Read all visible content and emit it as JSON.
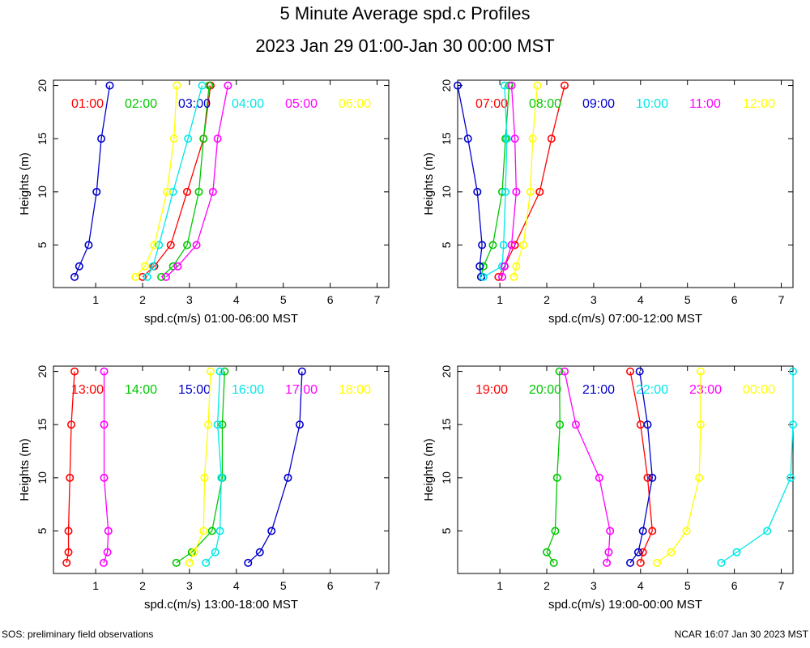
{
  "title": "5 Minute Average spd.c Profiles",
  "subtitle": "2023 Jan 29 01:00-Jan 30 00:00 MST",
  "footer_left": "SOS: preliminary field observations",
  "footer_right": "NCAR 16:07 Jan 30 2023 MST",
  "chart_data": [
    {
      "type": "line",
      "xlabel": "spd.c(m/s) 01:00-06:00 MST",
      "ylabel": "Heights (m)",
      "xlim": [
        0.1,
        7.25
      ],
      "ylim": [
        1,
        20.5
      ],
      "xticks": [
        1,
        2,
        3,
        4,
        5,
        6,
        7
      ],
      "yticks": [
        5,
        10,
        15,
        20
      ],
      "heights": [
        2,
        3,
        5,
        10,
        15,
        20
      ],
      "series": [
        {
          "name": "01:00",
          "color": "#ff0000",
          "values": [
            2.0,
            2.25,
            2.6,
            2.95,
            3.3,
            3.45
          ]
        },
        {
          "name": "02:00",
          "color": "#00c800",
          "values": [
            2.4,
            2.65,
            2.95,
            3.2,
            3.3,
            3.42
          ]
        },
        {
          "name": "03:00",
          "color": "#0000cc",
          "values": [
            0.55,
            0.65,
            0.85,
            1.02,
            1.12,
            1.3
          ]
        },
        {
          "name": "04:00",
          "color": "#00e8e8",
          "values": [
            2.1,
            2.22,
            2.35,
            2.65,
            2.97,
            3.27
          ]
        },
        {
          "name": "05:00",
          "color": "#ff00ff",
          "values": [
            2.5,
            2.75,
            3.15,
            3.5,
            3.6,
            3.82
          ]
        },
        {
          "name": "06:00",
          "color": "#ffff00",
          "values": [
            1.85,
            2.05,
            2.25,
            2.52,
            2.67,
            2.73
          ]
        }
      ]
    },
    {
      "type": "line",
      "xlabel": "spd.c(m/s) 07:00-12:00 MST",
      "ylabel": "Heights (m)",
      "xlim": [
        0.1,
        7.25
      ],
      "ylim": [
        1,
        20.5
      ],
      "xticks": [
        1,
        2,
        3,
        4,
        5,
        6,
        7
      ],
      "yticks": [
        5,
        10,
        15,
        20
      ],
      "heights": [
        2,
        3,
        5,
        10,
        15,
        20
      ],
      "series": [
        {
          "name": "07:00",
          "color": "#ff0000",
          "values": [
            0.97,
            1.1,
            1.32,
            1.85,
            2.1,
            2.38
          ]
        },
        {
          "name": "08:00",
          "color": "#00c800",
          "values": [
            0.6,
            0.65,
            0.85,
            1.05,
            1.12,
            1.2
          ]
        },
        {
          "name": "09:00",
          "color": "#0000cc",
          "values": [
            0.6,
            0.57,
            0.62,
            0.52,
            0.32,
            0.1
          ]
        },
        {
          "name": "10:00",
          "color": "#00e8e8",
          "values": [
            0.65,
            1.05,
            1.08,
            1.12,
            1.15,
            1.1
          ]
        },
        {
          "name": "11:00",
          "color": "#ff00ff",
          "values": [
            1.05,
            1.1,
            1.25,
            1.35,
            1.32,
            1.25
          ]
        },
        {
          "name": "12:00",
          "color": "#ffff00",
          "values": [
            1.3,
            1.35,
            1.5,
            1.65,
            1.7,
            1.8
          ]
        }
      ]
    },
    {
      "type": "line",
      "xlabel": "spd.c(m/s) 13:00-18:00 MST",
      "ylabel": "Heights (m)",
      "xlim": [
        0.1,
        7.25
      ],
      "ylim": [
        1,
        20.5
      ],
      "xticks": [
        1,
        2,
        3,
        4,
        5,
        6,
        7
      ],
      "yticks": [
        5,
        10,
        15,
        20
      ],
      "heights": [
        2,
        3,
        5,
        10,
        15,
        20
      ],
      "series": [
        {
          "name": "13:00",
          "color": "#ff0000",
          "values": [
            0.38,
            0.42,
            0.42,
            0.45,
            0.48,
            0.55
          ]
        },
        {
          "name": "14:00",
          "color": "#00c800",
          "values": [
            2.72,
            3.05,
            3.48,
            3.7,
            3.7,
            3.75
          ]
        },
        {
          "name": "15:00",
          "color": "#0000cc",
          "values": [
            4.25,
            4.5,
            4.75,
            5.1,
            5.35,
            5.4
          ]
        },
        {
          "name": "16:00",
          "color": "#00e8e8",
          "values": [
            3.35,
            3.55,
            3.65,
            3.68,
            3.6,
            3.65
          ]
        },
        {
          "name": "17:00",
          "color": "#ff00ff",
          "values": [
            1.17,
            1.25,
            1.27,
            1.18,
            1.18,
            1.18
          ]
        },
        {
          "name": "18:00",
          "color": "#ffff00",
          "values": [
            3.0,
            3.1,
            3.3,
            3.32,
            3.4,
            3.45
          ]
        }
      ]
    },
    {
      "type": "line",
      "xlabel": "spd.c(m/s) 19:00-00:00 MST",
      "ylabel": "Heights (m)",
      "xlim": [
        0.1,
        7.25
      ],
      "ylim": [
        1,
        20.5
      ],
      "xticks": [
        1,
        2,
        3,
        4,
        5,
        6,
        7
      ],
      "yticks": [
        5,
        10,
        15,
        20
      ],
      "heights": [
        2,
        3,
        5,
        10,
        15,
        20
      ],
      "series": [
        {
          "name": "19:00",
          "color": "#ff0000",
          "values": [
            4.0,
            4.05,
            4.25,
            4.15,
            4.0,
            3.78
          ]
        },
        {
          "name": "20:00",
          "color": "#00c800",
          "values": [
            2.15,
            2.0,
            2.18,
            2.22,
            2.28,
            2.27
          ]
        },
        {
          "name": "21:00",
          "color": "#0000cc",
          "values": [
            3.78,
            3.95,
            4.05,
            4.25,
            4.15,
            3.98
          ]
        },
        {
          "name": "22:00",
          "color": "#00e8e8",
          "values": [
            5.72,
            6.05,
            6.7,
            7.2,
            7.25,
            7.25
          ]
        },
        {
          "name": "23:00",
          "color": "#ff00ff",
          "values": [
            3.28,
            3.32,
            3.35,
            3.12,
            2.62,
            2.38
          ]
        },
        {
          "name": "00:00",
          "color": "#ffff00",
          "values": [
            4.35,
            4.65,
            4.98,
            5.25,
            5.28,
            5.28
          ]
        }
      ]
    }
  ]
}
